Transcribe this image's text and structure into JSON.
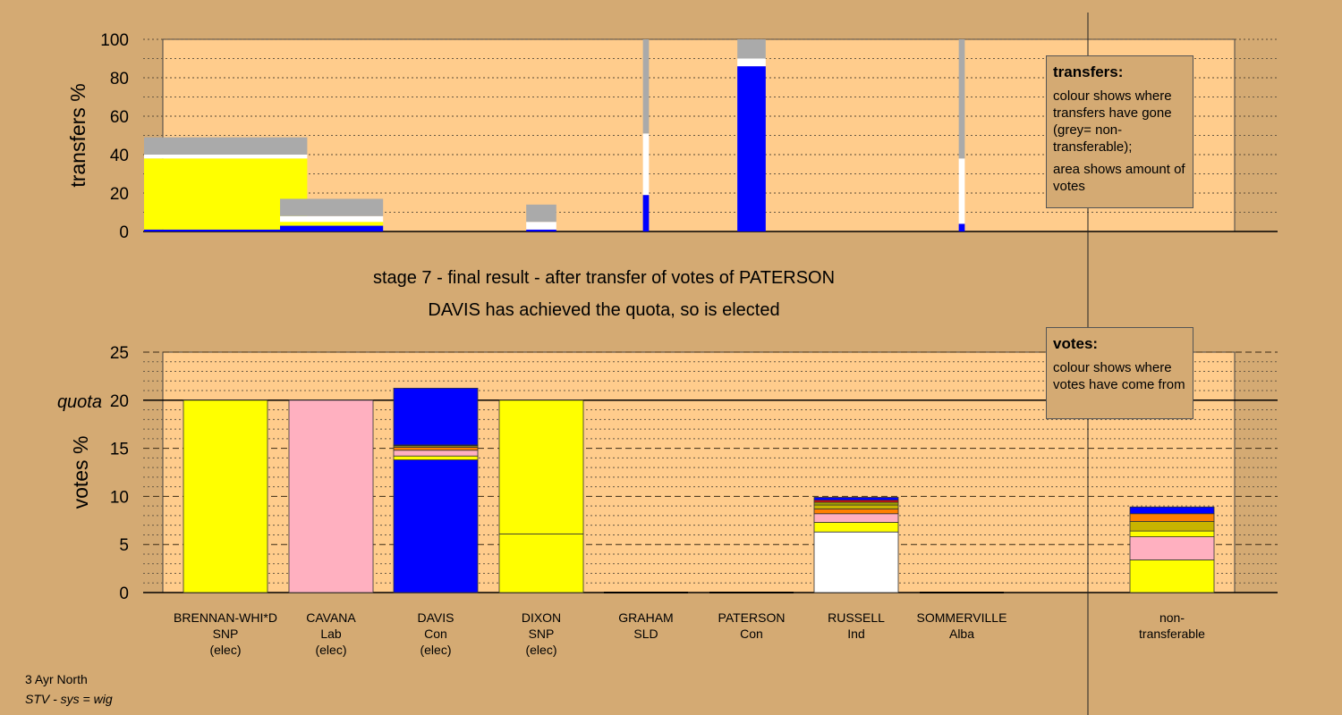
{
  "chart_data": [
    {
      "type": "bar",
      "panel": "transfers",
      "ylabel": "transfers %",
      "ylim": [
        0,
        100
      ],
      "yticks": [
        0,
        20,
        40,
        60,
        80,
        100
      ],
      "bars": [
        {
          "candidate": "BRENNAN-WHI*D",
          "width_votes": 19.0,
          "segments": [
            {
              "color": "#0000ff",
              "value": 1
            },
            {
              "color": "#ffff00",
              "value": 37
            },
            {
              "color": "#ffffff",
              "value": 2
            },
            {
              "color": "#aaaaaa",
              "value": 9
            }
          ]
        },
        {
          "candidate": "CAVANA",
          "width_votes": 12.0,
          "segments": [
            {
              "color": "#0000ff",
              "value": 3
            },
            {
              "color": "#ffff00",
              "value": 2
            },
            {
              "color": "#ffffff",
              "value": 3
            },
            {
              "color": "#aaaaaa",
              "value": 9
            }
          ]
        },
        {
          "candidate": "DIXON",
          "width_votes": 3.5,
          "segments": [
            {
              "color": "#0000ff",
              "value": 1
            },
            {
              "color": "#ffffff",
              "value": 4
            },
            {
              "color": "#aaaaaa",
              "value": 9
            }
          ]
        },
        {
          "candidate": "GRAHAM",
          "width_votes": 0.7,
          "segments": [
            {
              "color": "#0000ff",
              "value": 19
            },
            {
              "color": "#ffffff",
              "value": 32
            },
            {
              "color": "#aaaaaa",
              "value": 49
            }
          ]
        },
        {
          "candidate": "PATERSON",
          "width_votes": 3.3,
          "segments": [
            {
              "color": "#0000ff",
              "value": 86
            },
            {
              "color": "#ffffff",
              "value": 4
            },
            {
              "color": "#aaaaaa",
              "value": 10
            }
          ]
        },
        {
          "candidate": "SOMMERVILLE",
          "width_votes": 0.7,
          "segments": [
            {
              "color": "#0000ff",
              "value": 4
            },
            {
              "color": "#ffffff",
              "value": 34
            },
            {
              "color": "#aaaaaa",
              "value": 62
            }
          ]
        }
      ]
    },
    {
      "type": "bar",
      "panel": "votes",
      "ylabel": "votes %",
      "ylim": [
        0,
        25
      ],
      "yticks": [
        0,
        5,
        10,
        15,
        20,
        25
      ],
      "quota": 20,
      "quota_label": "quota",
      "categories": [
        {
          "name": "BRENNAN-WHI*D",
          "party": "SNP",
          "status": "(elec)"
        },
        {
          "name": "CAVANA",
          "party": "Lab",
          "status": "(elec)"
        },
        {
          "name": "DAVIS",
          "party": "Con",
          "status": "(elec)"
        },
        {
          "name": "DIXON",
          "party": "SNP",
          "status": "(elec)"
        },
        {
          "name": "GRAHAM",
          "party": "SLD",
          "status": ""
        },
        {
          "name": "PATERSON",
          "party": "Con",
          "status": ""
        },
        {
          "name": "RUSSELL",
          "party": "Ind",
          "status": ""
        },
        {
          "name": "SOMMERVILLE",
          "party": "Alba",
          "status": ""
        }
      ],
      "extra_category": {
        "line1": "non-",
        "line2": "transferable"
      },
      "stacks": [
        [
          {
            "color": "#ffff00",
            "value": 20.0
          }
        ],
        [
          {
            "color": "#ffb0c0",
            "value": 20.0
          }
        ],
        [
          {
            "color": "#0000ff",
            "value": 13.8
          },
          {
            "color": "#ffff00",
            "value": 0.4
          },
          {
            "color": "#ffb0c0",
            "value": 0.6
          },
          {
            "color": "#ff8000",
            "value": 0.3
          },
          {
            "color": "#c8b400",
            "value": 0.15
          },
          {
            "color": "#202020",
            "value": 0.1
          },
          {
            "color": "#0000ff",
            "value": 5.9
          }
        ],
        [
          {
            "color": "#ffff00",
            "value": 6.1
          },
          {
            "color": "#ffff00",
            "value": 13.9
          }
        ],
        [
          {
            "color": "#aaaaaa",
            "value": 0.0
          }
        ],
        [
          {
            "color": "#0000ff",
            "value": 0.0
          }
        ],
        [
          {
            "color": "#ffffff",
            "value": 6.3
          },
          {
            "color": "#ffff00",
            "value": 1.0
          },
          {
            "color": "#ffb0c0",
            "value": 0.9
          },
          {
            "color": "#ff8000",
            "value": 0.5
          },
          {
            "color": "#c8b400",
            "value": 0.4
          },
          {
            "color": "#a0a000",
            "value": 0.3
          },
          {
            "color": "#ff0000",
            "value": 0.2
          },
          {
            "color": "#0000ff",
            "value": 0.3
          }
        ],
        [
          {
            "color": "#aaaaaa",
            "value": 0.0
          }
        ]
      ],
      "nontransferable_stack": [
        {
          "color": "#ffff00",
          "value": 3.4
        },
        {
          "color": "#ffb0c0",
          "value": 2.4
        },
        {
          "color": "#ffff00",
          "value": 0.6
        },
        {
          "color": "#c8b400",
          "value": 1.0
        },
        {
          "color": "#ff8000",
          "value": 0.8
        },
        {
          "color": "#0000ff",
          "value": 0.7
        }
      ]
    }
  ],
  "stage_title": "stage 7 - final result - after transfer of votes of PATERSON",
  "stage_subtitle": "DAVIS has achieved the quota, so is elected",
  "transfers_legend": {
    "heading": "transfers:",
    "line1": "colour shows where transfers have gone (grey= non-transferable);",
    "line2": "area shows amount of votes"
  },
  "votes_legend": {
    "heading": "votes:",
    "line1": "colour shows where votes have come from"
  },
  "footer": {
    "ward": "3 Ayr North",
    "system": "STV - sys = wig"
  },
  "colors": {
    "background": "#d4aa73",
    "plot_area": "#ffcc8c"
  }
}
